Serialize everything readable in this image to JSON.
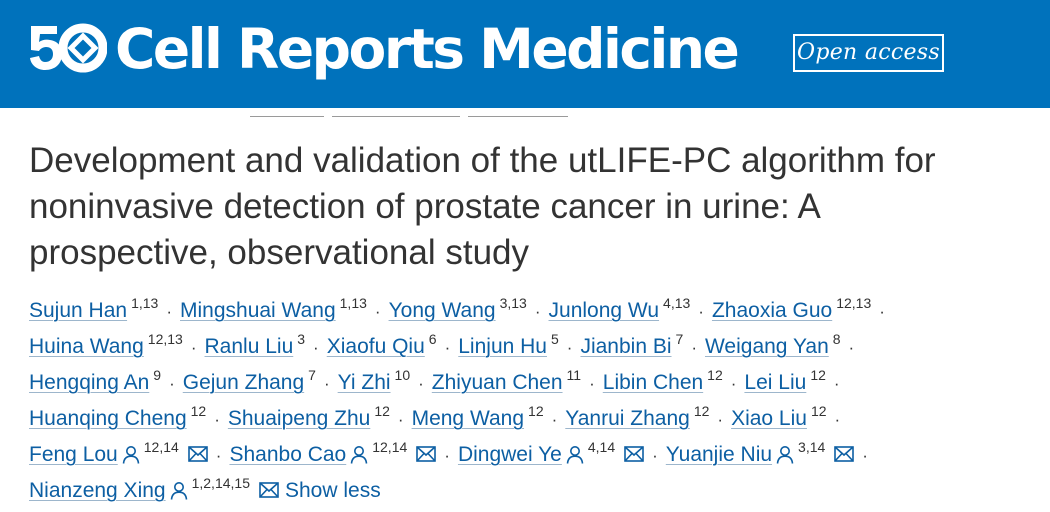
{
  "header": {
    "logo_text": "50",
    "journal_name": "Cell Reports Medicine",
    "badge": "Open access",
    "brand_color": "#0072bc"
  },
  "article": {
    "title_lines": [
      "Development and validation of the utLIFE-PC algorithm for",
      "noninvasive detection of prostate cancer in urine: A",
      "prospective, observational study"
    ]
  },
  "authors": [
    {
      "name": "Sujun Han",
      "aff": "1,13"
    },
    {
      "name": "Mingshuai Wang",
      "aff": "1,13"
    },
    {
      "name": "Yong Wang",
      "aff": "3,13"
    },
    {
      "name": "Junlong Wu",
      "aff": "4,13"
    },
    {
      "name": "Zhaoxia Guo",
      "aff": "12,13"
    },
    {
      "name": "Huina Wang",
      "aff": "12,13"
    },
    {
      "name": "Ranlu Liu",
      "aff": "3"
    },
    {
      "name": "Xiaofu Qiu",
      "aff": "6"
    },
    {
      "name": "Linjun Hu",
      "aff": "5"
    },
    {
      "name": "Jianbin Bi",
      "aff": "7"
    },
    {
      "name": "Weigang Yan",
      "aff": "8"
    },
    {
      "name": "Hengqing An",
      "aff": "9"
    },
    {
      "name": "Gejun Zhang",
      "aff": "7"
    },
    {
      "name": "Yi Zhi",
      "aff": "10"
    },
    {
      "name": "Zhiyuan Chen",
      "aff": "11"
    },
    {
      "name": "Libin Chen",
      "aff": "12"
    },
    {
      "name": "Lei Liu",
      "aff": "12"
    },
    {
      "name": "Huanqing Cheng",
      "aff": "12"
    },
    {
      "name": "Shuaipeng Zhu",
      "aff": "12"
    },
    {
      "name": "Meng Wang",
      "aff": "12"
    },
    {
      "name": "Yanrui Zhang",
      "aff": "12"
    },
    {
      "name": "Xiao Liu",
      "aff": "12"
    },
    {
      "name": "Feng Lou",
      "aff": "12,14",
      "corresponding": true
    },
    {
      "name": "Shanbo Cao",
      "aff": "12,14",
      "corresponding": true
    },
    {
      "name": "Dingwei Ye",
      "aff": "4,14",
      "corresponding": true
    },
    {
      "name": "Yuanjie Niu",
      "aff": "3,14",
      "corresponding": true
    },
    {
      "name": "Nianzeng Xing",
      "aff": "1,2,14,15",
      "corresponding": true
    }
  ],
  "author_lines": [
    [
      0,
      1,
      2,
      3,
      4
    ],
    [
      5,
      6,
      7,
      8,
      9,
      10
    ],
    [
      11,
      12,
      13,
      14,
      15,
      16
    ],
    [
      17,
      18,
      19,
      20,
      21
    ],
    [
      22,
      23,
      24,
      25
    ],
    [
      26
    ]
  ],
  "separator": "·",
  "show_less_label": "Show less",
  "icons": {
    "corresponding": "person-icon",
    "email": "mail-icon",
    "link_color": "#0d5fa3"
  }
}
